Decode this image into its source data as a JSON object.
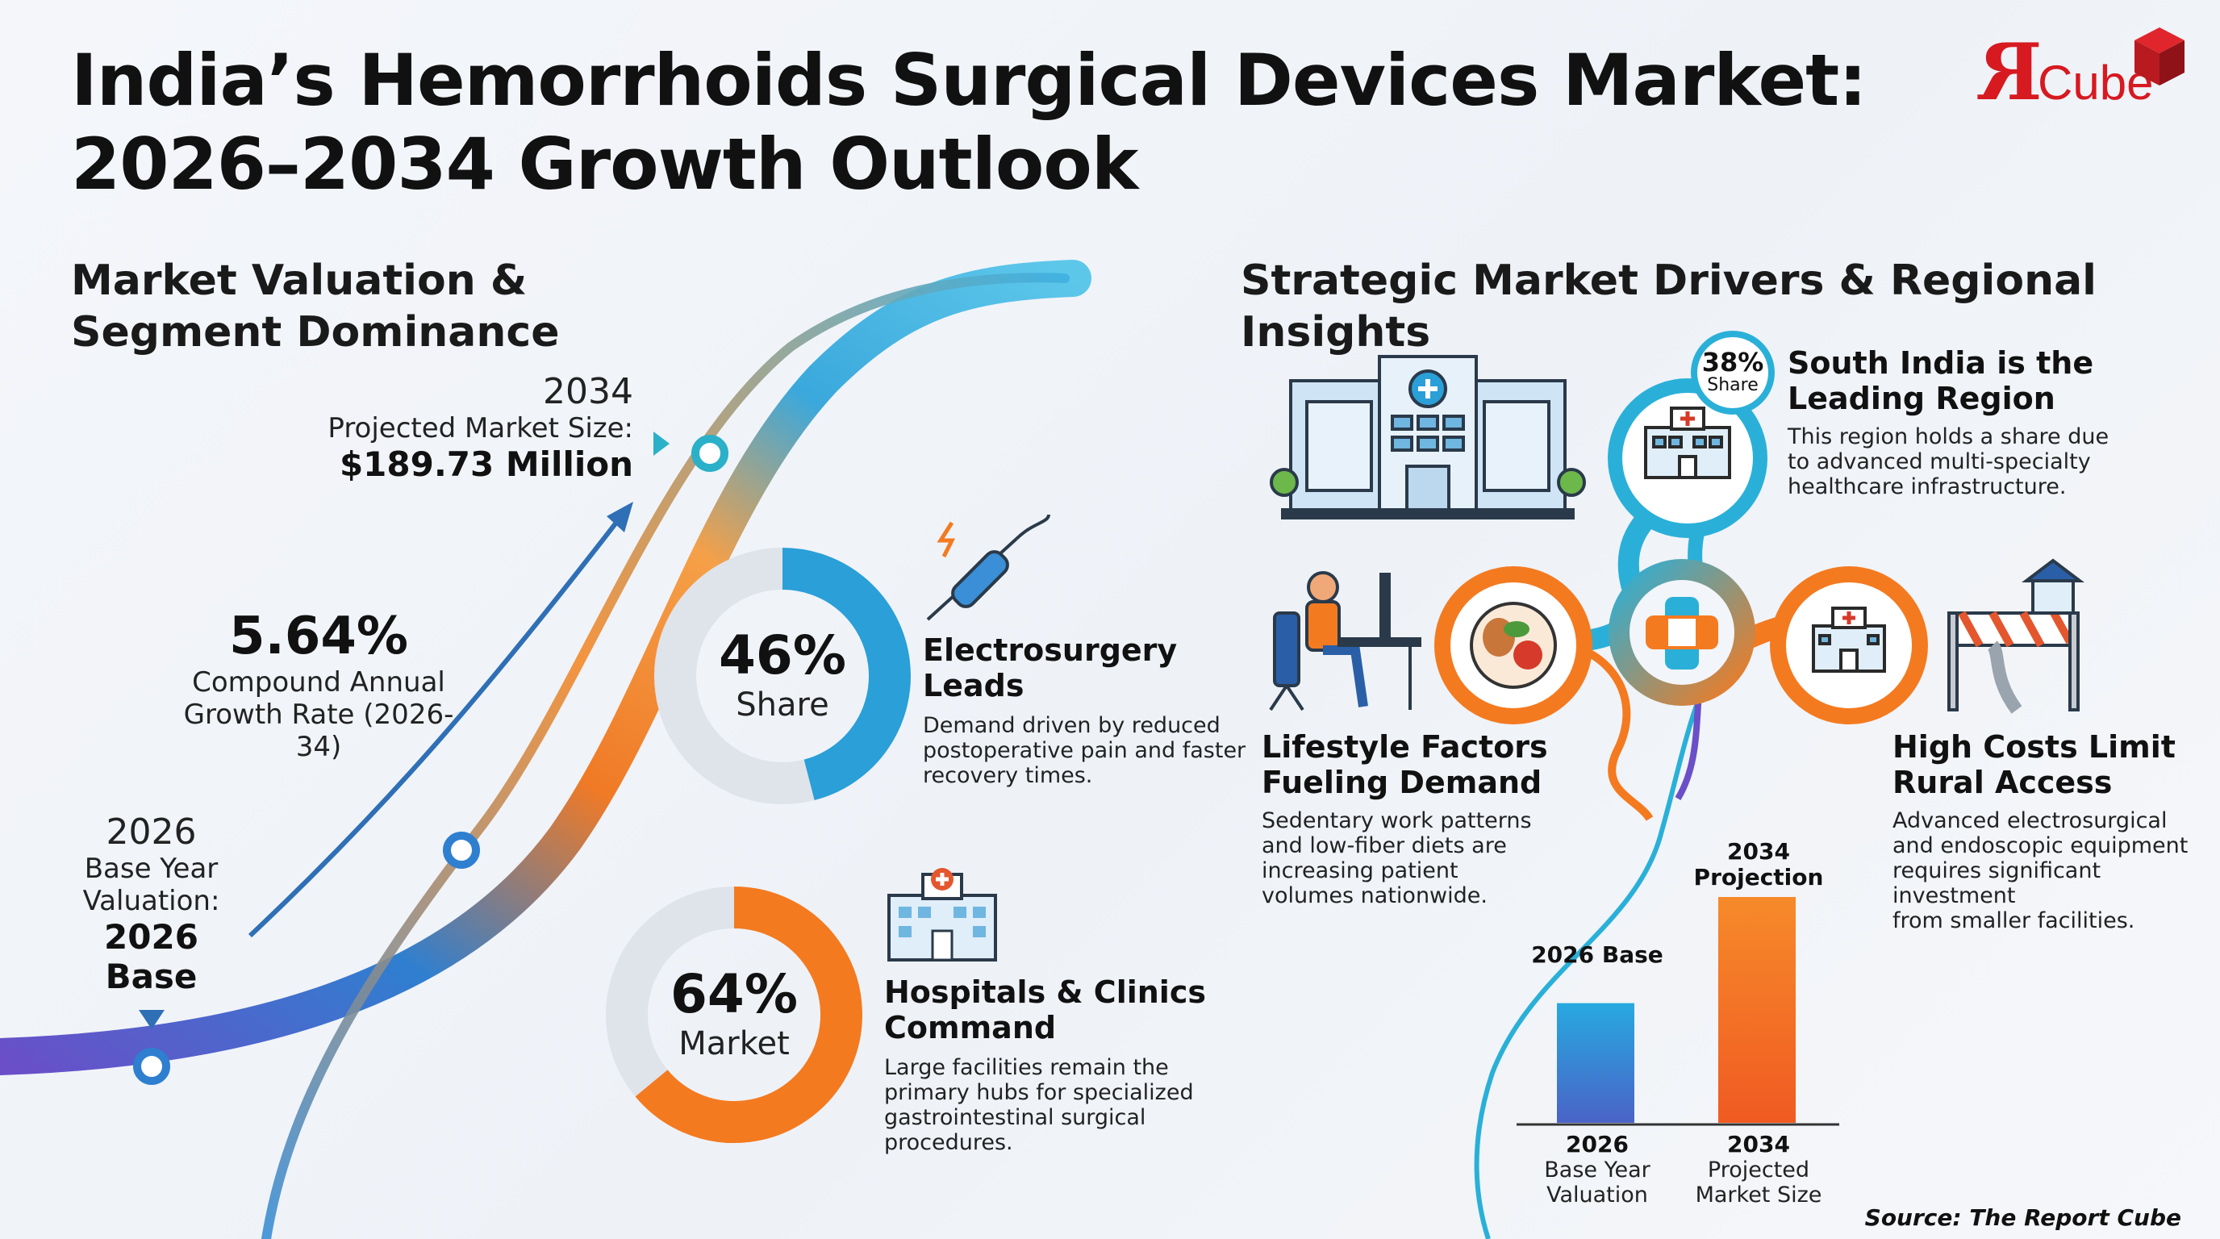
{
  "title_line1": "India’s Hemorrhoids Surgical Devices Market:",
  "title_line2": "2026–2034 Growth Outlook",
  "logo": {
    "mark": "R",
    "word": "Cube"
  },
  "left_section": {
    "heading_line1": "Market Valuation &",
    "heading_line2": "Segment Dominance",
    "end_year": "2034",
    "end_label": "Projected Market Size:",
    "end_value": "$189.73 Million",
    "cagr_value": "5.64%",
    "cagr_label_1": "Compound Annual",
    "cagr_label_2": "Growth Rate (2026-34)",
    "start_year": "2026",
    "start_label_1": "Base Year",
    "start_label_2": "Valuation:",
    "start_value_1": "2026",
    "start_value_2": "Base"
  },
  "segments": [
    {
      "value": "46%",
      "unit": "Share",
      "heading_1": "Electrosurgery",
      "heading_2": "Leads",
      "body_1": "Demand driven by reduced",
      "body_2": "postoperative pain and faster",
      "body_3": "recovery times.",
      "icon": "electrosurgery-pen-icon"
    },
    {
      "value": "64%",
      "unit": "Market",
      "heading_1": "Hospitals & Clinics",
      "heading_2": "Command",
      "body_1": "Large facilities remain the",
      "body_2": "primary hubs for specialized",
      "body_3": "gastrointestinal surgical",
      "body_4": "procedures.",
      "icon": "hospital-icon"
    }
  ],
  "right_section": {
    "heading": "Strategic Market Drivers & Regional Insights",
    "region": {
      "badge_value": "38%",
      "badge_label": "Share",
      "heading_1": "South India is the",
      "heading_2": "Leading Region",
      "body_1": "This region holds a share due",
      "body_2": "to advanced multi-specialty",
      "body_3": "healthcare infrastructure."
    },
    "lifestyle": {
      "heading_1": "Lifestyle Factors",
      "heading_2": "Fueling Demand",
      "body_1": "Sedentary work patterns",
      "body_2": "and low-fiber diets are",
      "body_3": "increasing patient",
      "body_4": "volumes nationwide."
    },
    "costs": {
      "heading_1": "High Costs Limit",
      "heading_2": "Rural Access",
      "body_1": "Advanced electrosurgical",
      "body_2": "and endoscopic equipment",
      "body_3": "requires significant investment",
      "body_4": "from smaller facilities."
    }
  },
  "chart_data": [
    {
      "type": "pie",
      "values": [
        46,
        54
      ],
      "labels": [
        "Electrosurgery",
        ""
      ],
      "center_text": "46% Share",
      "colors": [
        "#2a9fd8",
        "#dfe3ea"
      ]
    },
    {
      "type": "pie",
      "values": [
        64,
        36
      ],
      "labels": [
        "Hospitals & Clinics",
        ""
      ],
      "center_text": "64% Market",
      "colors": [
        "#f47a20",
        "#dfe3ea"
      ]
    },
    {
      "type": "bar",
      "categories": [
        "2026",
        "2034"
      ],
      "category_sublabels": [
        "Base Year Valuation",
        "Projected Market Size"
      ],
      "bar_top_labels": [
        "2026 Base",
        "2034 Projection"
      ],
      "values": [
        0.53,
        1.0
      ],
      "ylim": [
        0,
        1.0
      ],
      "value_note": "relative bar heights estimated from image",
      "colors": [
        "#2a9fd8",
        "#f47a20"
      ]
    }
  ],
  "source": "Source: The Report Cube"
}
